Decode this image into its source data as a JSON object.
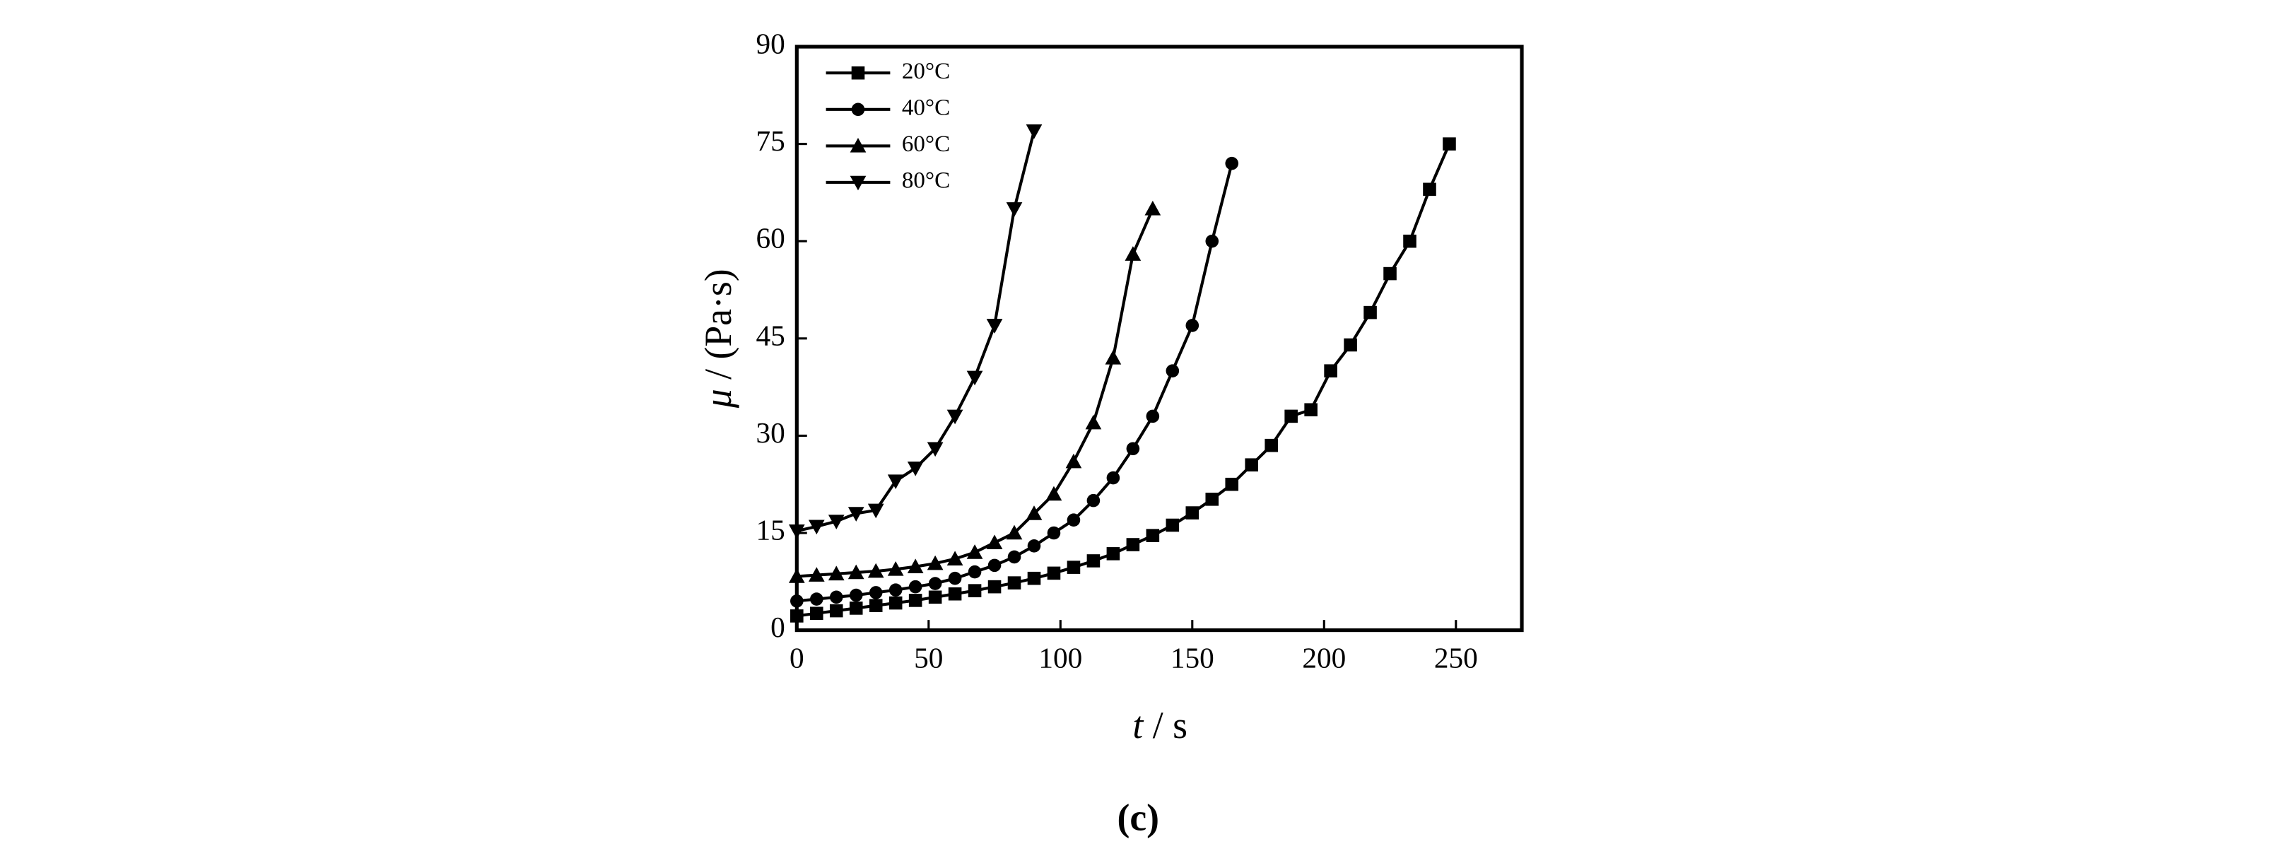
{
  "chart_data": {
    "type": "line",
    "x_label": {
      "symbol": "t",
      "rest": " / s"
    },
    "y_label": {
      "symbol": "μ",
      "rest": " / (Pa·s)"
    },
    "caption": "(c)",
    "xlim": [
      0,
      275
    ],
    "xticks": [
      0,
      50,
      100,
      150,
      200,
      250
    ],
    "ylim": [
      0,
      90
    ],
    "yticks": [
      0,
      15,
      30,
      45,
      60,
      75,
      90
    ],
    "legend": "upper left",
    "series": [
      {
        "name": "20°C",
        "color": "#000000",
        "marker": "square",
        "x": [
          0,
          7.5,
          15,
          22.5,
          30,
          37.5,
          45,
          52.5,
          60,
          67.5,
          75,
          82.5,
          90,
          97.5,
          105,
          112.5,
          120,
          127.5,
          135,
          142.5,
          150,
          157.5,
          165,
          172.5,
          180,
          187.5,
          195,
          202.5,
          210,
          217.5,
          225,
          232.5,
          240,
          247.5
        ],
        "values": [
          2.2,
          2.6,
          3.0,
          3.4,
          3.8,
          4.2,
          4.6,
          5.1,
          5.6,
          6.1,
          6.7,
          7.3,
          8.0,
          8.8,
          9.7,
          10.7,
          11.8,
          13.2,
          14.6,
          16.2,
          18.1,
          20.2,
          22.5,
          25.5,
          28.5,
          33,
          34,
          40,
          44,
          49,
          55,
          60,
          68,
          75
        ]
      },
      {
        "name": "40°C",
        "color": "#000000",
        "marker": "circle",
        "x": [
          0,
          7.5,
          15,
          22.5,
          30,
          37.5,
          45,
          52.5,
          60,
          67.5,
          75,
          82.5,
          90,
          97.5,
          105,
          112.5,
          120,
          127.5,
          135,
          142.5,
          150,
          157.5,
          165
        ],
        "values": [
          4.5,
          4.8,
          5.1,
          5.4,
          5.8,
          6.2,
          6.7,
          7.2,
          8.0,
          9,
          10,
          11.3,
          13,
          15,
          17,
          20,
          23.5,
          28,
          33,
          40,
          47,
          60,
          72
        ]
      },
      {
        "name": "60°C",
        "color": "#000000",
        "marker": "triangle-up",
        "x": [
          0,
          7.5,
          15,
          22.5,
          30,
          37.5,
          45,
          52.5,
          60,
          67.5,
          75,
          82.5,
          90,
          97.5,
          105,
          112.5,
          120,
          127.5,
          135
        ],
        "values": [
          8.3,
          8.5,
          8.7,
          8.9,
          9.1,
          9.4,
          9.8,
          10.3,
          11,
          12,
          13.5,
          15,
          18,
          21,
          26,
          32,
          42,
          58,
          65
        ]
      },
      {
        "name": "80°C",
        "color": "#000000",
        "marker": "triangle-down",
        "x": [
          0,
          7.5,
          15,
          22.5,
          30,
          37.5,
          45,
          52.5,
          60,
          67.5,
          75,
          82.5,
          90
        ],
        "values": [
          15.3,
          16,
          16.8,
          18,
          18.5,
          23,
          25,
          28,
          33,
          39,
          47,
          65,
          77
        ]
      }
    ]
  }
}
